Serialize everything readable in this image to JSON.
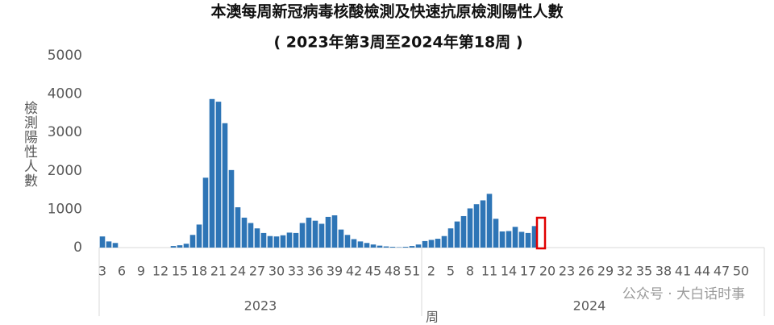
{
  "chart_data": {
    "type": "bar",
    "title": "本澳每周新冠病毒核酸檢測及快速抗原檢測陽性人數",
    "subtitle": "( 2023年第3周至2024年第18周 )",
    "y_label": "檢測陽性人數",
    "x_label": "周",
    "watermark": "公众号 · 大白话时事",
    "color": "#2e75b6",
    "ylim": [
      0,
      5000
    ],
    "yticks": [
      0,
      1000,
      2000,
      3000,
      4000,
      5000
    ],
    "groups": [
      {
        "label": "2023",
        "categories": [
          "3",
          null,
          null,
          "6",
          null,
          null,
          "9",
          null,
          null,
          "12",
          null,
          null,
          "15",
          null,
          null,
          "18",
          null,
          null,
          "21",
          null,
          null,
          "24",
          null,
          null,
          "27",
          null,
          null,
          "30",
          null,
          null,
          "33",
          null,
          null,
          "36",
          null,
          null,
          "39",
          null,
          null,
          "42",
          null,
          null,
          "45",
          null,
          null,
          "48",
          null,
          null,
          "51",
          null
        ],
        "values": [
          290,
          160,
          120,
          0,
          0,
          0,
          0,
          0,
          0,
          0,
          0,
          40,
          60,
          100,
          330,
          600,
          1820,
          3870,
          3800,
          3240,
          2020,
          1050,
          780,
          640,
          500,
          380,
          300,
          290,
          320,
          390,
          380,
          640,
          780,
          700,
          620,
          800,
          840,
          470,
          330,
          220,
          160,
          120,
          80,
          50,
          30,
          20,
          10,
          20,
          40,
          80
        ]
      },
      {
        "label": "2024",
        "categories": [
          null,
          "2",
          null,
          null,
          "5",
          null,
          null,
          "8",
          null,
          null,
          "11",
          null,
          null,
          "14",
          null,
          null,
          "17",
          null,
          null,
          "20",
          null,
          null,
          "23",
          null,
          null,
          "26",
          null,
          null,
          "29",
          null,
          null,
          "32",
          null,
          null,
          "35",
          null,
          null,
          "38",
          null,
          null,
          "41",
          null,
          null,
          "44",
          null,
          null,
          "47",
          null,
          null,
          "50",
          null,
          null
        ],
        "values": [
          170,
          200,
          230,
          300,
          500,
          680,
          820,
          1020,
          1130,
          1230,
          1400,
          750,
          420,
          430,
          540,
          410,
          380,
          560,
          null,
          null,
          null,
          null,
          null,
          null,
          null,
          null,
          null,
          null,
          null,
          null,
          null,
          null,
          null,
          null,
          null,
          null,
          null,
          null,
          null,
          null,
          null,
          null,
          null,
          null,
          null,
          null,
          null,
          null,
          null,
          null,
          null,
          null
        ]
      }
    ]
  }
}
